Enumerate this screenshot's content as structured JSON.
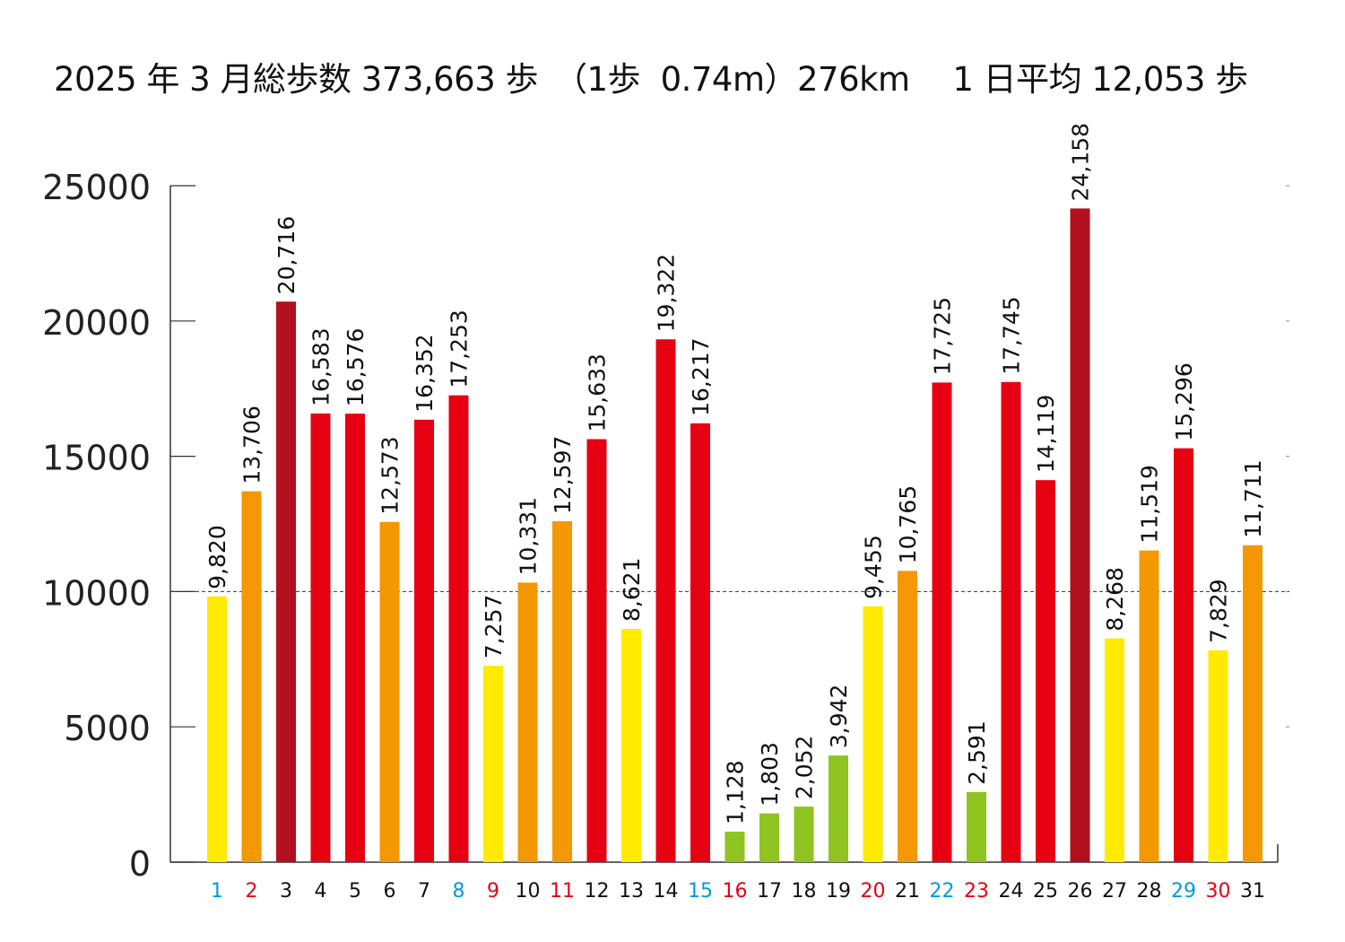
{
  "chart_data": {
    "type": "bar",
    "title": "2025 年 3 月総歩数 373,663 歩　（1歩  0.74m）276km　 1 日平均 12,053 歩",
    "xlabel": "",
    "ylabel": "",
    "ylim": [
      0,
      25000
    ],
    "yticks": [
      "0",
      "5000",
      "10000",
      "15000",
      "20000",
      "25000"
    ],
    "reference_line": 10000,
    "categories": [
      "1",
      "2",
      "3",
      "4",
      "5",
      "6",
      "7",
      "8",
      "9",
      "10",
      "11",
      "12",
      "13",
      "14",
      "15",
      "16",
      "17",
      "18",
      "19",
      "20",
      "21",
      "22",
      "23",
      "24",
      "25",
      "26",
      "27",
      "28",
      "29",
      "30",
      "31"
    ],
    "values": [
      9820,
      13706,
      20716,
      16583,
      16576,
      12573,
      16352,
      17253,
      7257,
      10331,
      12597,
      15633,
      8621,
      19322,
      16217,
      1128,
      1803,
      2052,
      3942,
      9455,
      10765,
      17725,
      2591,
      17745,
      14119,
      24158,
      8268,
      11519,
      15296,
      7829,
      11711
    ],
    "value_labels": [
      "9,820",
      "13,706",
      "20,716",
      "16,583",
      "16,576",
      "12,573",
      "16,352",
      "17,253",
      "7,257",
      "10,331",
      "12,597",
      "15,633",
      "8,621",
      "19,322",
      "16,217",
      "1,128",
      "1,803",
      "2,052",
      "3,942",
      "9,455",
      "10,765",
      "17,725",
      "2,591",
      "17,745",
      "14,119",
      "24,158",
      "8,268",
      "11,519",
      "15,296",
      "7,829",
      "11,711"
    ],
    "bar_colors": [
      "#ffea00",
      "#f39800",
      "#b2101c",
      "#e60012",
      "#e60012",
      "#f39800",
      "#e60012",
      "#e60012",
      "#ffea00",
      "#f39800",
      "#f39800",
      "#e60012",
      "#ffea00",
      "#e60012",
      "#e60012",
      "#8fc31f",
      "#8fc31f",
      "#8fc31f",
      "#8fc31f",
      "#ffea00",
      "#f39800",
      "#e60012",
      "#8fc31f",
      "#e60012",
      "#e60012",
      "#b2101c",
      "#ffea00",
      "#f39800",
      "#e60012",
      "#ffea00",
      "#f39800"
    ],
    "day_label_colors": [
      "#0099e0",
      "#e60012",
      "#111",
      "#111",
      "#111",
      "#111",
      "#111",
      "#0099e0",
      "#e60012",
      "#111",
      "#e60012",
      "#111",
      "#111",
      "#111",
      "#0099e0",
      "#e60012",
      "#111",
      "#111",
      "#111",
      "#e60012",
      "#111",
      "#0099e0",
      "#e60012",
      "#111",
      "#111",
      "#111",
      "#111",
      "#111",
      "#0099e0",
      "#e60012",
      "#111"
    ]
  }
}
